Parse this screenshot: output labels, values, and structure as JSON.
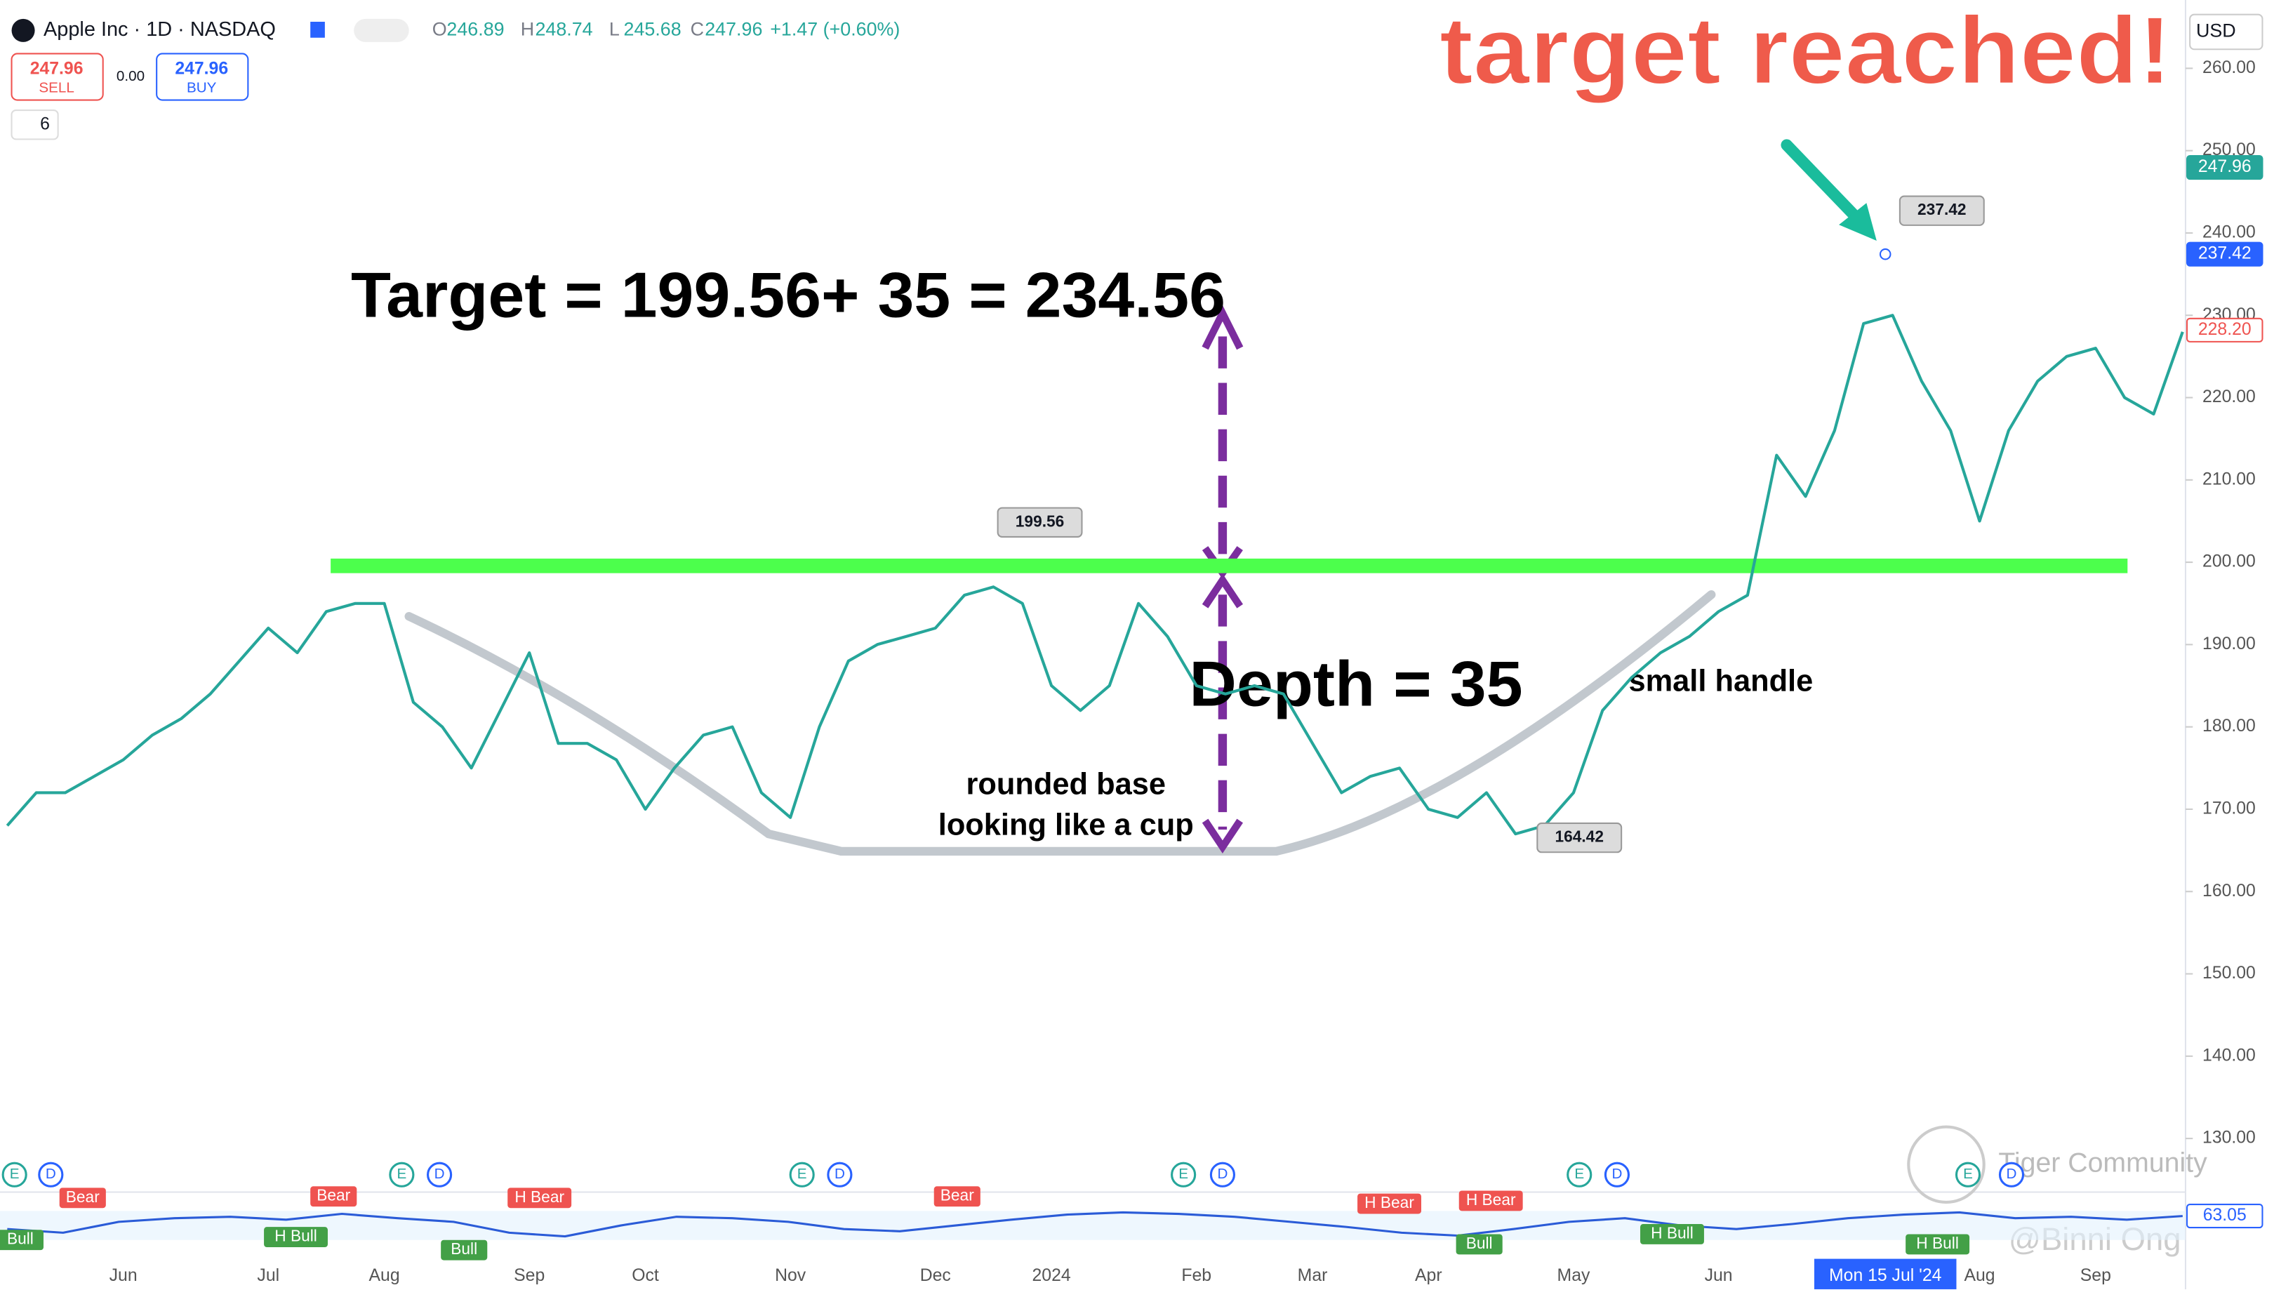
{
  "header": {
    "symbol": "Apple Inc · 1D · NASDAQ",
    "ohlc": [
      {
        "label": "O",
        "value": "246.89"
      },
      {
        "label": "H",
        "value": "248.74"
      },
      {
        "label": "L",
        "value": "245.68"
      },
      {
        "label": "C",
        "value": "247.96"
      }
    ],
    "change": "+1.47 (+0.60%)",
    "sell_price": "247.96",
    "sell": "SELL",
    "spread": "0.00",
    "buy_price": "247.96",
    "buy": "BUY",
    "quantity": "6",
    "currency": "USD",
    "crosshair_date": "Mon 15 Jul '24"
  },
  "annotations": {
    "headline": "target reached!",
    "target": "Target = 199.56+ 35 = 234.56",
    "depth": "Depth = 35",
    "handle": "small handle",
    "base_line1": "rounded base",
    "base_line2": "looking like a cup",
    "callouts": [
      {
        "value": 199.56,
        "label": "199.56"
      },
      {
        "value": 164.42,
        "label": "164.42"
      },
      {
        "value": 237.42,
        "label": "237.42"
      }
    ]
  },
  "indicator_labels": {
    "bear": "Bear",
    "h_bear": "H Bear",
    "bull": "Bull",
    "h_bull": "H Bull",
    "event_e": "E",
    "event_d": "D"
  },
  "watermark": {
    "community": "Tiger Community",
    "author": "@Binni Ong"
  },
  "chart_data": [
    {
      "type": "line",
      "color": "#26a69a",
      "categories": [
        null,
        null,
        null,
        null,
        "Jun",
        null,
        null,
        null,
        null,
        "Jul",
        null,
        null,
        null,
        "Aug",
        null,
        null,
        null,
        null,
        "Sep",
        null,
        null,
        null,
        "Oct",
        null,
        null,
        null,
        null,
        "Nov",
        null,
        null,
        null,
        null,
        "Dec",
        null,
        null,
        null,
        "2024",
        null,
        null,
        null,
        null,
        "Feb",
        null,
        null,
        null,
        "Mar",
        null,
        null,
        null,
        "Apr",
        null,
        null,
        null,
        null,
        "May",
        null,
        null,
        null,
        null,
        "Jun",
        null,
        null,
        null,
        null,
        null,
        null,
        null,
        null,
        "Aug",
        null,
        null,
        null,
        "Sep",
        null,
        null,
        null
      ],
      "values": [
        168,
        172,
        172,
        174,
        176,
        179,
        181,
        184,
        188,
        192,
        189,
        194,
        195,
        195,
        183,
        180,
        175,
        182,
        189,
        178,
        178,
        176,
        170,
        175,
        179,
        180,
        172,
        169,
        180,
        188,
        190,
        191,
        192,
        196,
        197,
        195,
        185,
        182,
        185,
        195,
        191,
        185,
        184,
        185,
        184,
        178,
        172,
        174,
        175,
        170,
        169,
        172,
        167,
        168,
        172,
        182,
        186,
        189,
        191,
        194,
        196,
        213,
        208,
        216,
        229,
        230,
        222,
        216,
        205,
        216,
        222,
        225,
        226,
        220,
        218,
        228
      ],
      "ylim": [
        125.6,
        268.3
      ],
      "yticks": [
        {
          "value": 130,
          "label": "130.00"
        },
        {
          "value": 140,
          "label": "140.00"
        },
        {
          "value": 150,
          "label": "150.00"
        },
        {
          "value": 160,
          "label": "160.00"
        },
        {
          "value": 170,
          "label": "170.00"
        },
        {
          "value": 180,
          "label": "180.00"
        },
        {
          "value": 190,
          "label": "190.00"
        },
        {
          "value": 200,
          "label": "200.00"
        },
        {
          "value": 210,
          "label": "210.00"
        },
        {
          "value": 220,
          "label": "220.00"
        },
        {
          "value": 230,
          "label": "230.00"
        },
        {
          "value": 240,
          "label": "240.00"
        },
        {
          "value": 250,
          "label": "250.00"
        },
        {
          "value": 260,
          "label": "260.00"
        }
      ],
      "price_tags": [
        {
          "value": 247.96,
          "label": "247.96",
          "color": "#26a69a"
        },
        {
          "value": 237.42,
          "label": "237.42",
          "color": "#2962ff"
        },
        {
          "value": 228.2,
          "label": "228.20",
          "color": "#ef5350"
        }
      ]
    },
    {
      "type": "line",
      "color": "#2a5bd7",
      "ylim": [
        0,
        100
      ],
      "values": [
        45,
        40,
        55,
        60,
        62,
        58,
        66,
        60,
        55,
        40,
        35,
        50,
        62,
        60,
        55,
        45,
        42,
        50,
        58,
        65,
        68,
        66,
        62,
        55,
        48,
        40,
        36,
        45,
        55,
        60,
        50,
        45,
        52,
        60,
        65,
        68,
        60,
        62,
        58,
        63
      ],
      "last": {
        "value": 63.05,
        "label": "63.05"
      }
    }
  ]
}
